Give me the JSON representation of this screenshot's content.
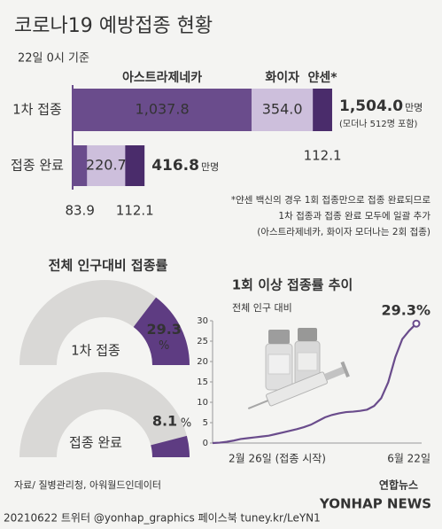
{
  "header": {
    "title": "코로나19 예방접종 현황",
    "subtitle": "22일 0시 기준"
  },
  "chart_data": [
    {
      "type": "stacked-bar",
      "categories": [
        "1차 접종",
        "접종 완료"
      ],
      "series": [
        {
          "name": "아스트라제네카",
          "color": "#6a4c8c",
          "values": [
            1037.8,
            83.9
          ],
          "value_labels": [
            "1,037.8",
            "83.9"
          ]
        },
        {
          "name": "화이자",
          "color": "#cdbfdc",
          "values": [
            354.0,
            220.7
          ],
          "value_labels": [
            "354.0",
            "220.7"
          ]
        },
        {
          "name": "얀센*",
          "color": "#4a2c6b",
          "values": [
            112.1,
            112.1
          ],
          "value_labels": [
            "112.1",
            "112.1"
          ]
        }
      ],
      "totals": [
        1504.0,
        416.8
      ],
      "total_labels": [
        "1,504.0",
        "416.8"
      ],
      "unit": "만명",
      "annotation": "(모더나 512명 포함)",
      "footnotes": [
        "*얀센 백신의 경우 1회 접종만으로 접종 완료되므로",
        "1차 접종과 접종 완료 모두에 일괄 추가",
        "(아스트라제네카, 화이자 모더나는 2회 접종)"
      ]
    },
    {
      "type": "gauge",
      "title": "전체 인구대비 접종률",
      "categories": [
        "1차 접종",
        "접종 완료"
      ],
      "values": [
        29.3,
        8.1
      ],
      "unit": "%",
      "ylim": [
        0,
        100
      ],
      "color": "#5e3c82",
      "track_color": "#d9d8d6"
    },
    {
      "type": "line",
      "title": "1회 이상 접종률 추이",
      "ylabel": "전체 인구 대비",
      "categories": [
        "2월 26일 (접종 시작)",
        null,
        null,
        null,
        null,
        null,
        null,
        null,
        null,
        null,
        null,
        null,
        null,
        null,
        null,
        null,
        null,
        null,
        null,
        null,
        null,
        null,
        null,
        null,
        null,
        null,
        null,
        null,
        null,
        "6월 22일"
      ],
      "values": [
        0,
        0.1,
        0.3,
        0.6,
        1.0,
        1.2,
        1.4,
        1.6,
        1.8,
        2.2,
        2.6,
        3.0,
        3.4,
        3.9,
        4.5,
        5.4,
        6.3,
        6.9,
        7.3,
        7.6,
        7.7,
        7.9,
        8.2,
        9.1,
        11.0,
        14.9,
        21.0,
        25.5,
        27.6,
        29.3
      ],
      "value_labels": [
        null,
        null,
        null,
        null,
        null,
        null,
        null,
        null,
        null,
        null,
        null,
        null,
        null,
        null,
        null,
        null,
        null,
        null,
        null,
        null,
        null,
        null,
        null,
        null,
        null,
        null,
        null,
        null,
        null,
        "29.3%"
      ],
      "color": "#6a4c8c",
      "ylim": [
        0,
        30
      ],
      "yticks": [
        0,
        5,
        10,
        15,
        20,
        25,
        30
      ]
    }
  ],
  "source": "자료/ 질병관리청, 아워월드인데이터",
  "footer": "20210622 트위터 @yonhap_graphics 페이스북 tuney.kr/LeYN1",
  "logo": {
    "name": "연합뉴스",
    "english": "YONHAP NEWS"
  }
}
